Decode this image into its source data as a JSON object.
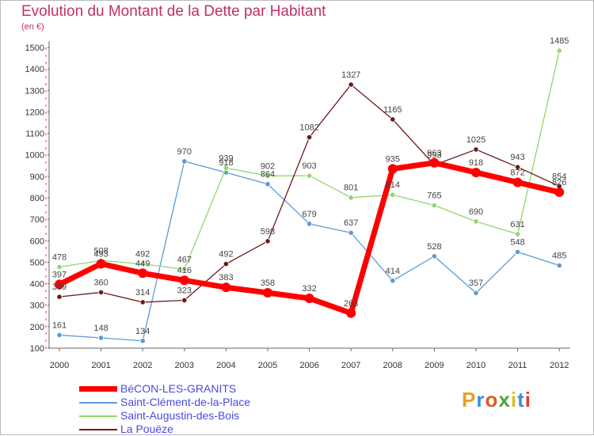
{
  "header": {
    "title": "Evolution du Montant de la Dette par Habitant",
    "subtitle": "(en €)"
  },
  "logo": {
    "text": "Proxiti",
    "colors": [
      "#e8a020",
      "#3a8fd8",
      "#e05a20",
      "#4aa83a",
      "#d8c020",
      "#3a8fd8",
      "#e03a3a"
    ]
  },
  "chart_data": {
    "type": "line",
    "x": [
      "2000",
      "2001",
      "2002",
      "2003",
      "2004",
      "2005",
      "2006",
      "2007",
      "2008",
      "2009",
      "2010",
      "2011",
      "2012"
    ],
    "ylim": [
      100,
      1500
    ],
    "yticks": [
      100,
      200,
      300,
      400,
      500,
      600,
      700,
      800,
      900,
      1000,
      1100,
      1200,
      1300,
      1400,
      1500
    ],
    "grid": false,
    "legend_position": "bottom-left",
    "series": [
      {
        "name": "BéCON-LES-GRANITS",
        "color": "#ff0000",
        "highlight": true,
        "values": [
          397,
          493,
          449,
          416,
          383,
          358,
          332,
          263,
          935,
          963,
          918,
          872,
          826
        ],
        "labels": [
          "397",
          "493",
          "449",
          "416",
          "383",
          "358",
          "332",
          "263",
          "935",
          "963",
          "918",
          "872",
          "826"
        ]
      },
      {
        "name": "Saint-Clément-de-la-Place",
        "color": "#5b9bd5",
        "values": [
          161,
          148,
          134,
          970,
          918,
          864,
          679,
          637,
          414,
          528,
          357,
          548,
          485
        ],
        "labels": [
          "161",
          "148",
          "134",
          "970",
          "918",
          "864",
          "679",
          "637",
          "414",
          "528",
          "357",
          "548",
          "485"
        ]
      },
      {
        "name": "Saint-Augustin-des-Bois",
        "color": "#8fd86a",
        "values": [
          478,
          508,
          492,
          467,
          939,
          902,
          903,
          801,
          814,
          765,
          690,
          631,
          1485
        ],
        "labels": [
          "478",
          "508",
          "492",
          "467",
          "939",
          "902",
          "903",
          "801",
          "814",
          "765",
          "690",
          "631",
          "1485"
        ]
      },
      {
        "name": "La Pouëze",
        "color": "#6b1a1a",
        "values": [
          339,
          360,
          314,
          323,
          492,
          598,
          1082,
          1327,
          1165,
          953,
          1025,
          943,
          854
        ],
        "labels": [
          "339",
          "360",
          "314",
          "323",
          "492",
          "598",
          "1082",
          "1327",
          "1165",
          "953",
          "1025",
          "943",
          "854"
        ]
      }
    ]
  }
}
